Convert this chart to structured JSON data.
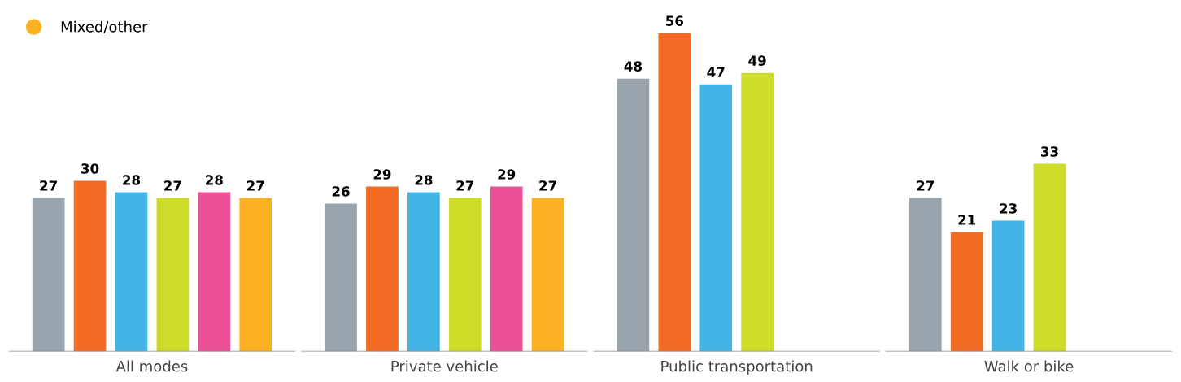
{
  "chart_data": {
    "type": "bar",
    "categories": [
      "All modes",
      "Private vehicle",
      "Public transportation",
      "Walk or bike"
    ],
    "series": [
      {
        "color": "#9aa4ac",
        "values": [
          27,
          26,
          48,
          27
        ]
      },
      {
        "color": "#f26b23",
        "values": [
          30,
          29,
          56,
          21
        ]
      },
      {
        "color": "#42b4e6",
        "values": [
          28,
          28,
          47,
          23
        ]
      },
      {
        "color": "#cddc29",
        "values": [
          27,
          27,
          49,
          33
        ]
      },
      {
        "color": "#ec5096",
        "values": [
          28,
          29,
          null,
          null
        ]
      },
      {
        "name": "Mixed/other",
        "color": "#fbb122",
        "values": [
          27,
          27,
          null,
          null
        ]
      }
    ],
    "data_labels": true,
    "legend": "top left",
    "grid": false
  }
}
